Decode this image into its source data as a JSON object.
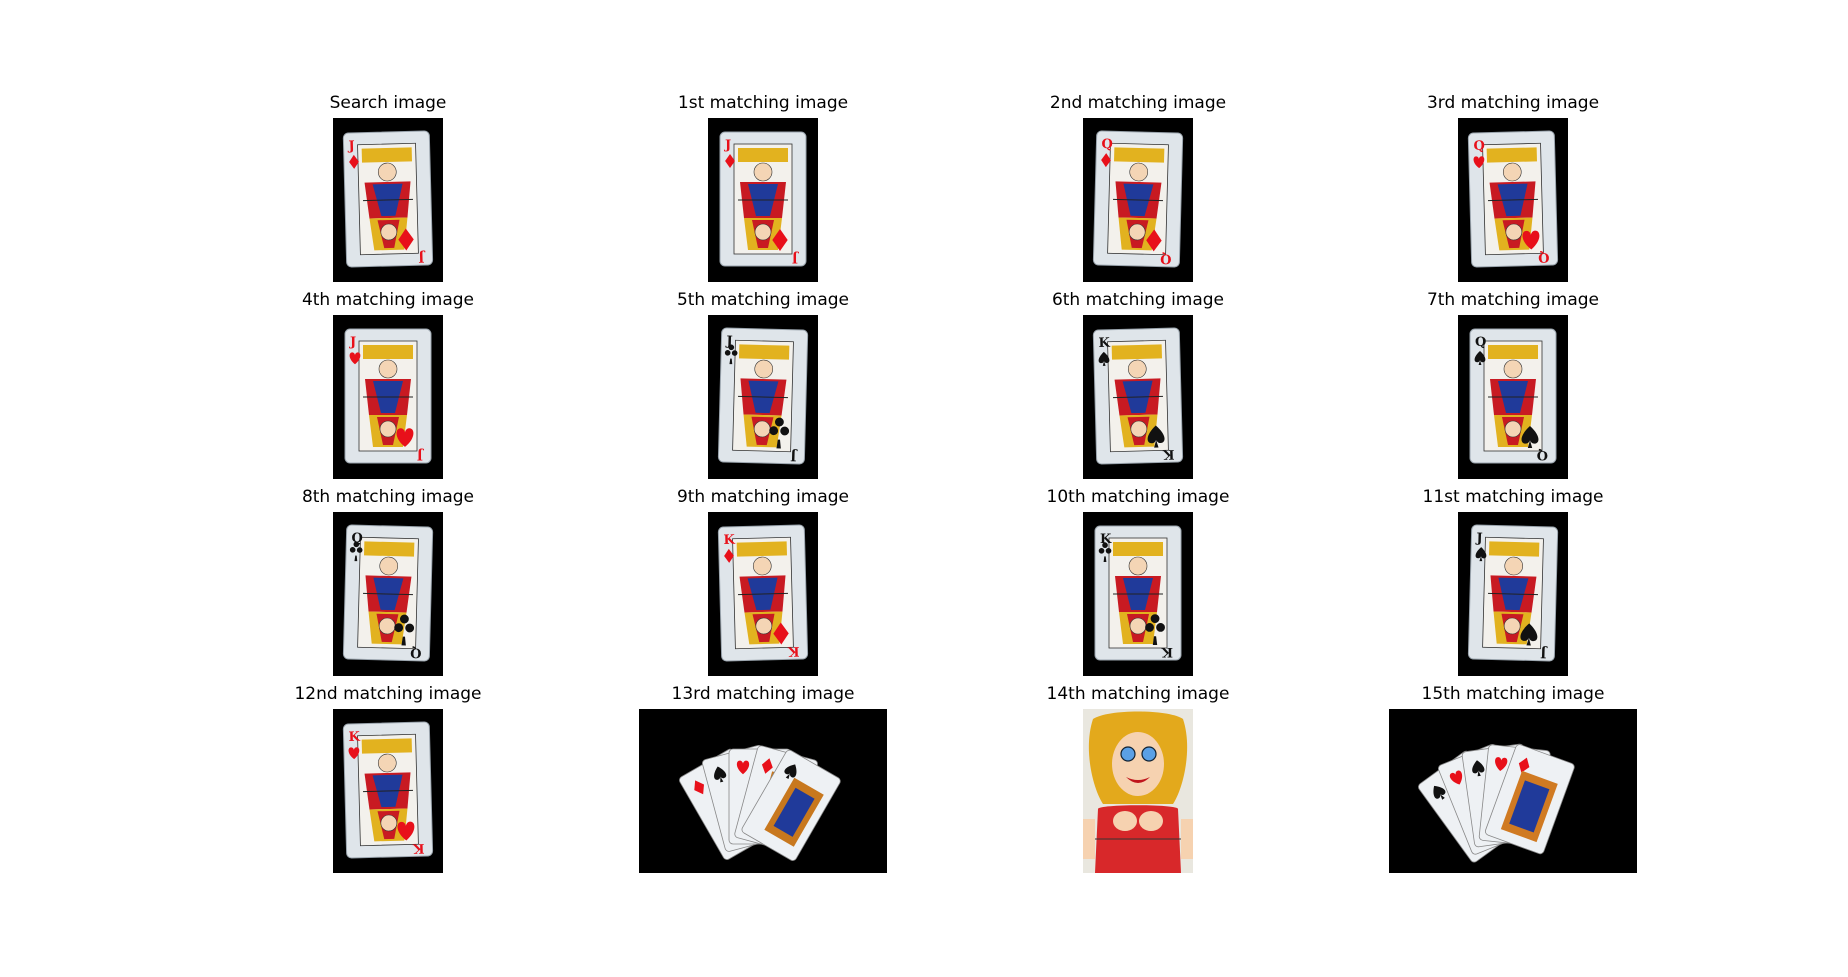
{
  "panels": [
    {
      "title": "Search image",
      "card": {
        "rank": "J",
        "suit": "diamond",
        "color": "#e8101a"
      }
    },
    {
      "title": "1st matching image",
      "card": {
        "rank": "J",
        "suit": "diamond",
        "color": "#e8101a"
      }
    },
    {
      "title": "2nd matching image",
      "card": {
        "rank": "Q",
        "suit": "diamond",
        "color": "#e8101a"
      }
    },
    {
      "title": "3rd matching image",
      "card": {
        "rank": "Q",
        "suit": "heart",
        "color": "#e8101a"
      }
    },
    {
      "title": "4th matching image",
      "card": {
        "rank": "J",
        "suit": "heart",
        "color": "#e8101a"
      }
    },
    {
      "title": "5th matching image",
      "card": {
        "rank": "J",
        "suit": "club",
        "color": "#111111"
      }
    },
    {
      "title": "6th matching image",
      "card": {
        "rank": "K",
        "suit": "spade",
        "color": "#111111"
      }
    },
    {
      "title": "7th matching image",
      "card": {
        "rank": "Q",
        "suit": "spade",
        "color": "#111111"
      }
    },
    {
      "title": "8th matching image",
      "card": {
        "rank": "Q",
        "suit": "club",
        "color": "#111111"
      }
    },
    {
      "title": "9th matching image",
      "card": {
        "rank": "K",
        "suit": "diamond",
        "color": "#e8101a"
      }
    },
    {
      "title": "10th matching image",
      "card": {
        "rank": "K",
        "suit": "club",
        "color": "#111111"
      }
    },
    {
      "title": "11st matching image",
      "card": {
        "rank": "J",
        "suit": "spade",
        "color": "#111111"
      }
    },
    {
      "title": "12nd matching image",
      "card": {
        "rank": "K",
        "suit": "heart",
        "color": "#e8101a"
      }
    },
    {
      "title": "13rd matching image",
      "card": null
    },
    {
      "title": "14th matching image",
      "card": null
    },
    {
      "title": "15th matching image",
      "card": null
    }
  ]
}
